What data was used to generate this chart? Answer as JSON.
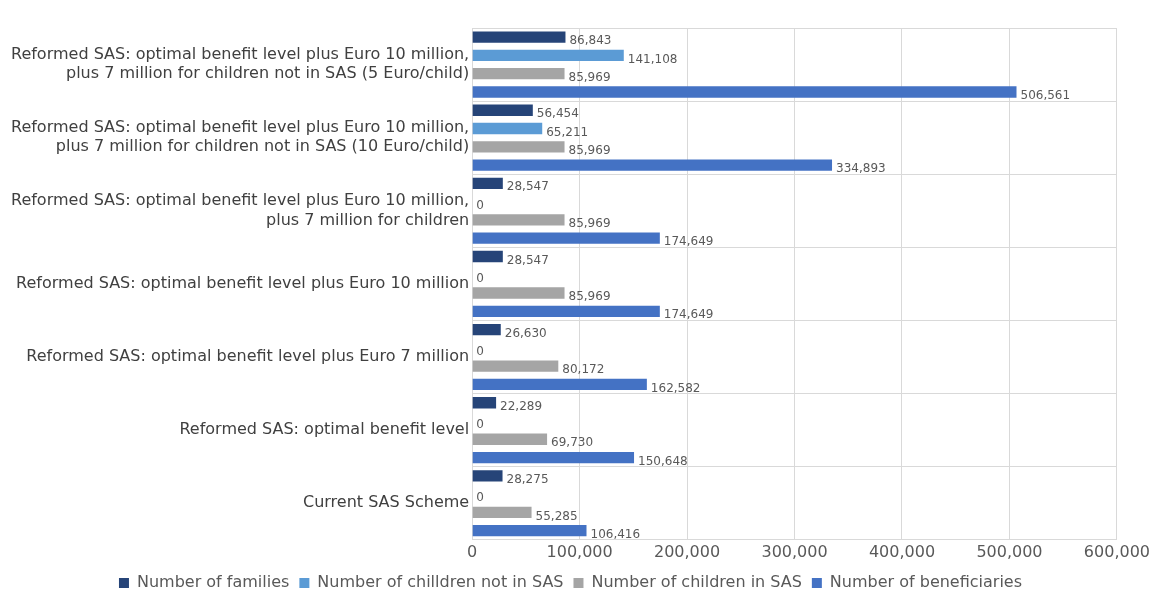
{
  "chart_data": {
    "type": "bar",
    "orientation": "horizontal",
    "categories": [
      "Reformed SAS: optimal benefit level plus Euro 10 million, plus 7 million for children not in SAS (5 Euro/child)",
      "Reformed SAS: optimal benefit level plus Euro 10 million, plus 7 million for children not in SAS (10 Euro/child)",
      "Reformed SAS: optimal benefit level plus Euro 10 million, plus 7 million for children",
      "Reformed SAS: optimal benefit level plus Euro 10 million",
      "Reformed SAS: optimal benefit level plus Euro 7 million",
      "Reformed SAS: optimal benefit level",
      "Current SAS Scheme"
    ],
    "series": [
      {
        "name": "Number of families",
        "color": "#264478",
        "values": [
          86843,
          56454,
          28547,
          28547,
          26630,
          22289,
          28275
        ],
        "value_labels": [
          "86,843",
          "56,454",
          "28,547",
          "28,547",
          "26,630",
          "22,289",
          "28,275"
        ]
      },
      {
        "name": "Number of chilldren not in SAS",
        "color": "#5b9bd5",
        "values": [
          141108,
          65211,
          0,
          0,
          0,
          0,
          0
        ],
        "value_labels": [
          "141,108",
          "65,211",
          "0",
          "0",
          "0",
          "0",
          "0"
        ]
      },
      {
        "name": "Number of children in SAS",
        "color": "#a5a5a5",
        "values": [
          85969,
          85969,
          85969,
          85969,
          80172,
          69730,
          55285
        ],
        "value_labels": [
          "85,969",
          "85,969",
          "85,969",
          "85,969",
          "80,172",
          "69,730",
          "55,285"
        ]
      },
      {
        "name": "Number of beneficiaries",
        "color": "#4472c4",
        "values": [
          506561,
          334893,
          174649,
          174649,
          162582,
          150648,
          106416
        ],
        "value_labels": [
          "506,561",
          "334,893",
          "174,649",
          "174,649",
          "162,582",
          "150,648",
          "106,416"
        ]
      }
    ],
    "xlim": [
      0,
      600000
    ],
    "xticks": [
      0,
      {
        "value": 100000,
        "label": "100,000"
      },
      {
        "value": 200000,
        "label": "200,000"
      },
      {
        "value": 300000,
        "label": "300,000"
      },
      {
        "value": 400000,
        "label": "400,000"
      },
      {
        "value": 500000,
        "label": "500,000"
      },
      {
        "value": 600000,
        "label": "600,000"
      }
    ],
    "grid": true,
    "legend": "bottom"
  }
}
